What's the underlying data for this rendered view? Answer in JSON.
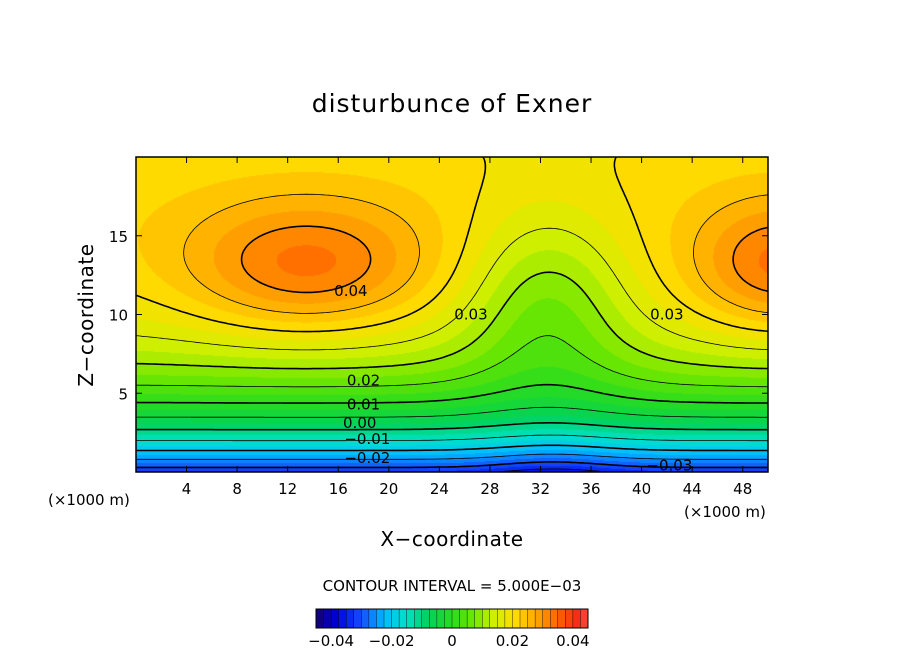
{
  "chart_data": {
    "type": "contour",
    "title": "disturbunce of Exner",
    "xlabel": "X−coordinate",
    "ylabel": "Z−coordinate",
    "x_unit_left": "(×1000 m)",
    "x_unit_right": "(×1000 m)",
    "xlim": [
      0,
      50
    ],
    "ylim": [
      0,
      20
    ],
    "x_ticks": [
      4,
      8,
      12,
      16,
      20,
      24,
      28,
      32,
      36,
      40,
      44,
      48
    ],
    "x_tick_labels": [
      "4",
      "8",
      "12",
      "16",
      "20",
      "24",
      "28",
      "32",
      "36",
      "40",
      "44",
      "48"
    ],
    "y_ticks": [
      5,
      10,
      15
    ],
    "y_tick_labels": [
      "5",
      "10",
      "15"
    ],
    "contour_interval_text": "CONTOUR INTERVAL = 5.000E−03",
    "contour_interval": 0.005,
    "value_range": [
      -0.045,
      0.045
    ],
    "field_description": "Exner function perturbation; maximum near 0.045 at (x≈14, z≈13) and at the right edge z≈13; saddle near x≈32; minimum near −0.035 at the bottom around x≈33",
    "contour_labels": [
      {
        "text": "0.04",
        "x": 17.0,
        "z": 11.5
      },
      {
        "text": "0.03",
        "x": 26.5,
        "z": 10.0
      },
      {
        "text": "0.03",
        "x": 42.0,
        "z": 10.0
      },
      {
        "text": "0.02",
        "x": 18.0,
        "z": 5.8
      },
      {
        "text": "0.01",
        "x": 18.0,
        "z": 4.3
      },
      {
        "text": "0.00",
        "x": 17.7,
        "z": 3.1
      },
      {
        "text": "−0.01",
        "x": 18.3,
        "z": 2.1
      },
      {
        "text": "−0.02",
        "x": 18.3,
        "z": 0.9
      },
      {
        "text": "−0.03",
        "x": 42.2,
        "z": 0.4
      }
    ],
    "colorbar": {
      "ticks": [
        -0.04,
        -0.02,
        0,
        0.02,
        0.04
      ],
      "tick_labels": [
        "−0.04",
        "−0.02",
        "0",
        "0.02",
        "0.04"
      ]
    },
    "grid": false
  }
}
